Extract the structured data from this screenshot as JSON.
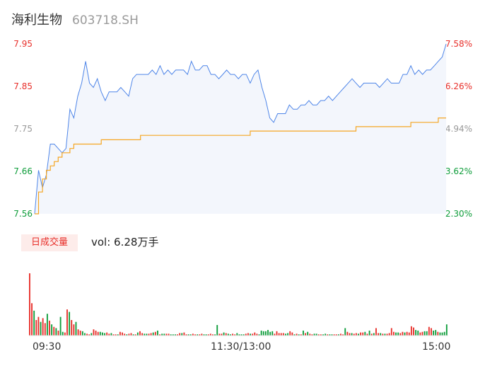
{
  "header": {
    "name": "海利生物",
    "code": "603718.SH"
  },
  "volume_panel": {
    "tag": "日成交量",
    "summary": "vol: 6.28万手"
  },
  "colors": {
    "up": "#e8302b",
    "down": "#0f9d3b",
    "flat": "#999999",
    "price_line": "#4e85e8",
    "avg_line": "#f5a623",
    "area_fill": "#f3f6fc"
  },
  "chart_data": [
    {
      "type": "line",
      "title": "",
      "series": [
        {
          "name": "",
          "values": [
            7.56,
            7.66,
            7.62,
            7.65,
            7.72,
            7.72,
            7.71,
            7.7,
            7.71,
            7.8,
            7.78,
            7.83,
            7.86,
            7.91,
            7.86,
            7.85,
            7.87,
            7.84,
            7.82,
            7.84,
            7.84,
            7.84,
            7.85,
            7.84,
            7.83,
            7.87,
            7.88,
            7.88,
            7.88,
            7.88,
            7.89,
            7.88,
            7.9,
            7.88,
            7.89,
            7.88,
            7.89,
            7.89,
            7.89,
            7.88,
            7.91,
            7.89,
            7.89,
            7.9,
            7.9,
            7.88,
            7.88,
            7.87,
            7.88,
            7.89,
            7.88,
            7.88,
            7.87,
            7.88,
            7.88,
            7.86,
            7.88,
            7.89,
            7.85,
            7.82,
            7.78,
            7.77,
            7.79,
            7.79,
            7.79,
            7.81,
            7.8,
            7.8,
            7.81,
            7.81,
            7.82,
            7.81,
            7.81,
            7.82,
            7.82,
            7.83,
            7.82,
            7.83,
            7.84,
            7.85,
            7.86,
            7.87,
            7.86,
            7.85,
            7.86,
            7.86,
            7.86,
            7.86,
            7.85,
            7.86,
            7.87,
            7.86,
            7.86,
            7.86,
            7.88,
            7.88,
            7.9,
            7.88,
            7.89,
            7.88,
            7.89,
            7.89,
            7.9,
            7.91,
            7.92,
            7.95
          ]
        },
        {
          "name": "",
          "values": [
            7.56,
            7.61,
            7.64,
            7.66,
            7.67,
            7.68,
            7.69,
            7.7,
            7.7,
            7.71,
            7.72,
            7.72,
            7.72,
            7.72,
            7.72,
            7.72,
            7.72,
            7.73,
            7.73,
            7.73,
            7.73,
            7.73,
            7.73,
            7.73,
            7.73,
            7.73,
            7.73,
            7.74,
            7.74,
            7.74,
            7.74,
            7.74,
            7.74,
            7.74,
            7.74,
            7.74,
            7.74,
            7.74,
            7.74,
            7.74,
            7.74,
            7.74,
            7.74,
            7.74,
            7.74,
            7.74,
            7.74,
            7.74,
            7.74,
            7.74,
            7.74,
            7.74,
            7.74,
            7.74,
            7.74,
            7.75,
            7.75,
            7.75,
            7.75,
            7.75,
            7.75,
            7.75,
            7.75,
            7.75,
            7.75,
            7.75,
            7.75,
            7.75,
            7.75,
            7.75,
            7.75,
            7.75,
            7.75,
            7.75,
            7.75,
            7.75,
            7.75,
            7.75,
            7.75,
            7.75,
            7.75,
            7.75,
            7.76,
            7.76,
            7.76,
            7.76,
            7.76,
            7.76,
            7.76,
            7.76,
            7.76,
            7.76,
            7.76,
            7.76,
            7.76,
            7.76,
            7.77,
            7.77,
            7.77,
            7.77,
            7.77,
            7.77,
            7.77,
            7.78,
            7.78,
            7.78
          ]
        }
      ],
      "y_ticks": [
        "7.95",
        "7.85",
        "7.75",
        "7.66",
        "7.56"
      ],
      "y_tick_colors": [
        "#e8302b",
        "#e8302b",
        "#999999",
        "#0f9d3b",
        "#0f9d3b"
      ],
      "y_right_ticks": [
        "7.58%",
        "6.26%",
        "4.94%",
        "3.62%",
        "2.30%"
      ],
      "y_right_colors": [
        "#e8302b",
        "#e8302b",
        "#999999",
        "#0f9d3b",
        "#0f9d3b"
      ],
      "ylim": [
        7.56,
        7.95
      ],
      "grid": false,
      "legend": "none"
    },
    {
      "type": "bar",
      "title": "",
      "x_ticks": [
        "09:30",
        "11:30/13:00",
        "15:00"
      ],
      "values": [
        100,
        52,
        40,
        25,
        30,
        22,
        28,
        20,
        35,
        24,
        18,
        14,
        12,
        8,
        30,
        6,
        5,
        42,
        38,
        25,
        18,
        22,
        10,
        8,
        7,
        4,
        3,
        2,
        4,
        10,
        8,
        6,
        6,
        5,
        4,
        5,
        3,
        4,
        2,
        2,
        2,
        6,
        5,
        3,
        2,
        3,
        4,
        2,
        2,
        5,
        7,
        4,
        3,
        3,
        3,
        4,
        5,
        6,
        8,
        2,
        3,
        3,
        3,
        3,
        2,
        2,
        2,
        2,
        4,
        4,
        5,
        2,
        2,
        2,
        3,
        2,
        2,
        2,
        3,
        2,
        2,
        2,
        3,
        2,
        2,
        17,
        3,
        3,
        5,
        4,
        3,
        2,
        3,
        2,
        4,
        2,
        2,
        2,
        3,
        4,
        3,
        3,
        5,
        3,
        2,
        8,
        7,
        7,
        9,
        6,
        7,
        3,
        7,
        4,
        4,
        4,
        3,
        4,
        7,
        5,
        2,
        3,
        2,
        2,
        8,
        4,
        6,
        3,
        2,
        3,
        3,
        2,
        2,
        2,
        3,
        2,
        2,
        2,
        2,
        2,
        2,
        3,
        2,
        12,
        6,
        4,
        4,
        3,
        4,
        3,
        5,
        5,
        6,
        3,
        8,
        3,
        4,
        12,
        4,
        4,
        3,
        3,
        3,
        4,
        12,
        6,
        5,
        5,
        4,
        6,
        5,
        6,
        5,
        15,
        13,
        9,
        8,
        5,
        6,
        7,
        7,
        14,
        12,
        8,
        9,
        6,
        5,
        5,
        6,
        18
      ],
      "colors": [
        "u",
        "u",
        "d",
        "u",
        "u",
        "d",
        "u",
        "u",
        "d",
        "u",
        "d",
        "u",
        "d",
        "u",
        "d",
        "d",
        "u",
        "u",
        "d",
        "u",
        "u",
        "d",
        "u",
        "u",
        "d",
        "d",
        "u",
        "u",
        "d",
        "u",
        "u",
        "u",
        "d",
        "d",
        "d",
        "u",
        "u",
        "d",
        "u",
        "u",
        "d",
        "u",
        "u",
        "u",
        "d",
        "u",
        "u",
        "d",
        "u",
        "d",
        "u",
        "u",
        "d",
        "d",
        "u",
        "u",
        "d",
        "u",
        "d",
        "u",
        "d",
        "d",
        "u",
        "u",
        "d",
        "d",
        "d",
        "u",
        "u",
        "d",
        "u",
        "u",
        "d",
        "d",
        "u",
        "u",
        "d",
        "u",
        "u",
        "d",
        "d",
        "u",
        "u",
        "u",
        "d",
        "d",
        "u",
        "u",
        "d",
        "u",
        "d",
        "d",
        "u",
        "u",
        "d",
        "d",
        "d",
        "d",
        "u",
        "u",
        "d",
        "u",
        "u",
        "u",
        "d",
        "d",
        "d",
        "d",
        "d",
        "d",
        "d",
        "u",
        "u",
        "u",
        "u",
        "u",
        "d",
        "d",
        "u",
        "u",
        "d",
        "u",
        "d",
        "u",
        "d",
        "u",
        "d",
        "u",
        "u",
        "d",
        "d",
        "u",
        "u",
        "d",
        "d",
        "u",
        "d",
        "d",
        "u",
        "u",
        "d",
        "u",
        "u",
        "d",
        "u",
        "u",
        "d",
        "u",
        "u",
        "d",
        "u",
        "u",
        "d",
        "u",
        "d",
        "u",
        "d",
        "u",
        "u",
        "d",
        "u",
        "d",
        "u",
        "u",
        "u",
        "u",
        "d",
        "d",
        "u",
        "u",
        "d",
        "u",
        "u",
        "u",
        "u",
        "d",
        "d",
        "u",
        "u",
        "d",
        "d",
        "u",
        "u",
        "d",
        "d",
        "u"
      ],
      "legend": "none"
    }
  ]
}
